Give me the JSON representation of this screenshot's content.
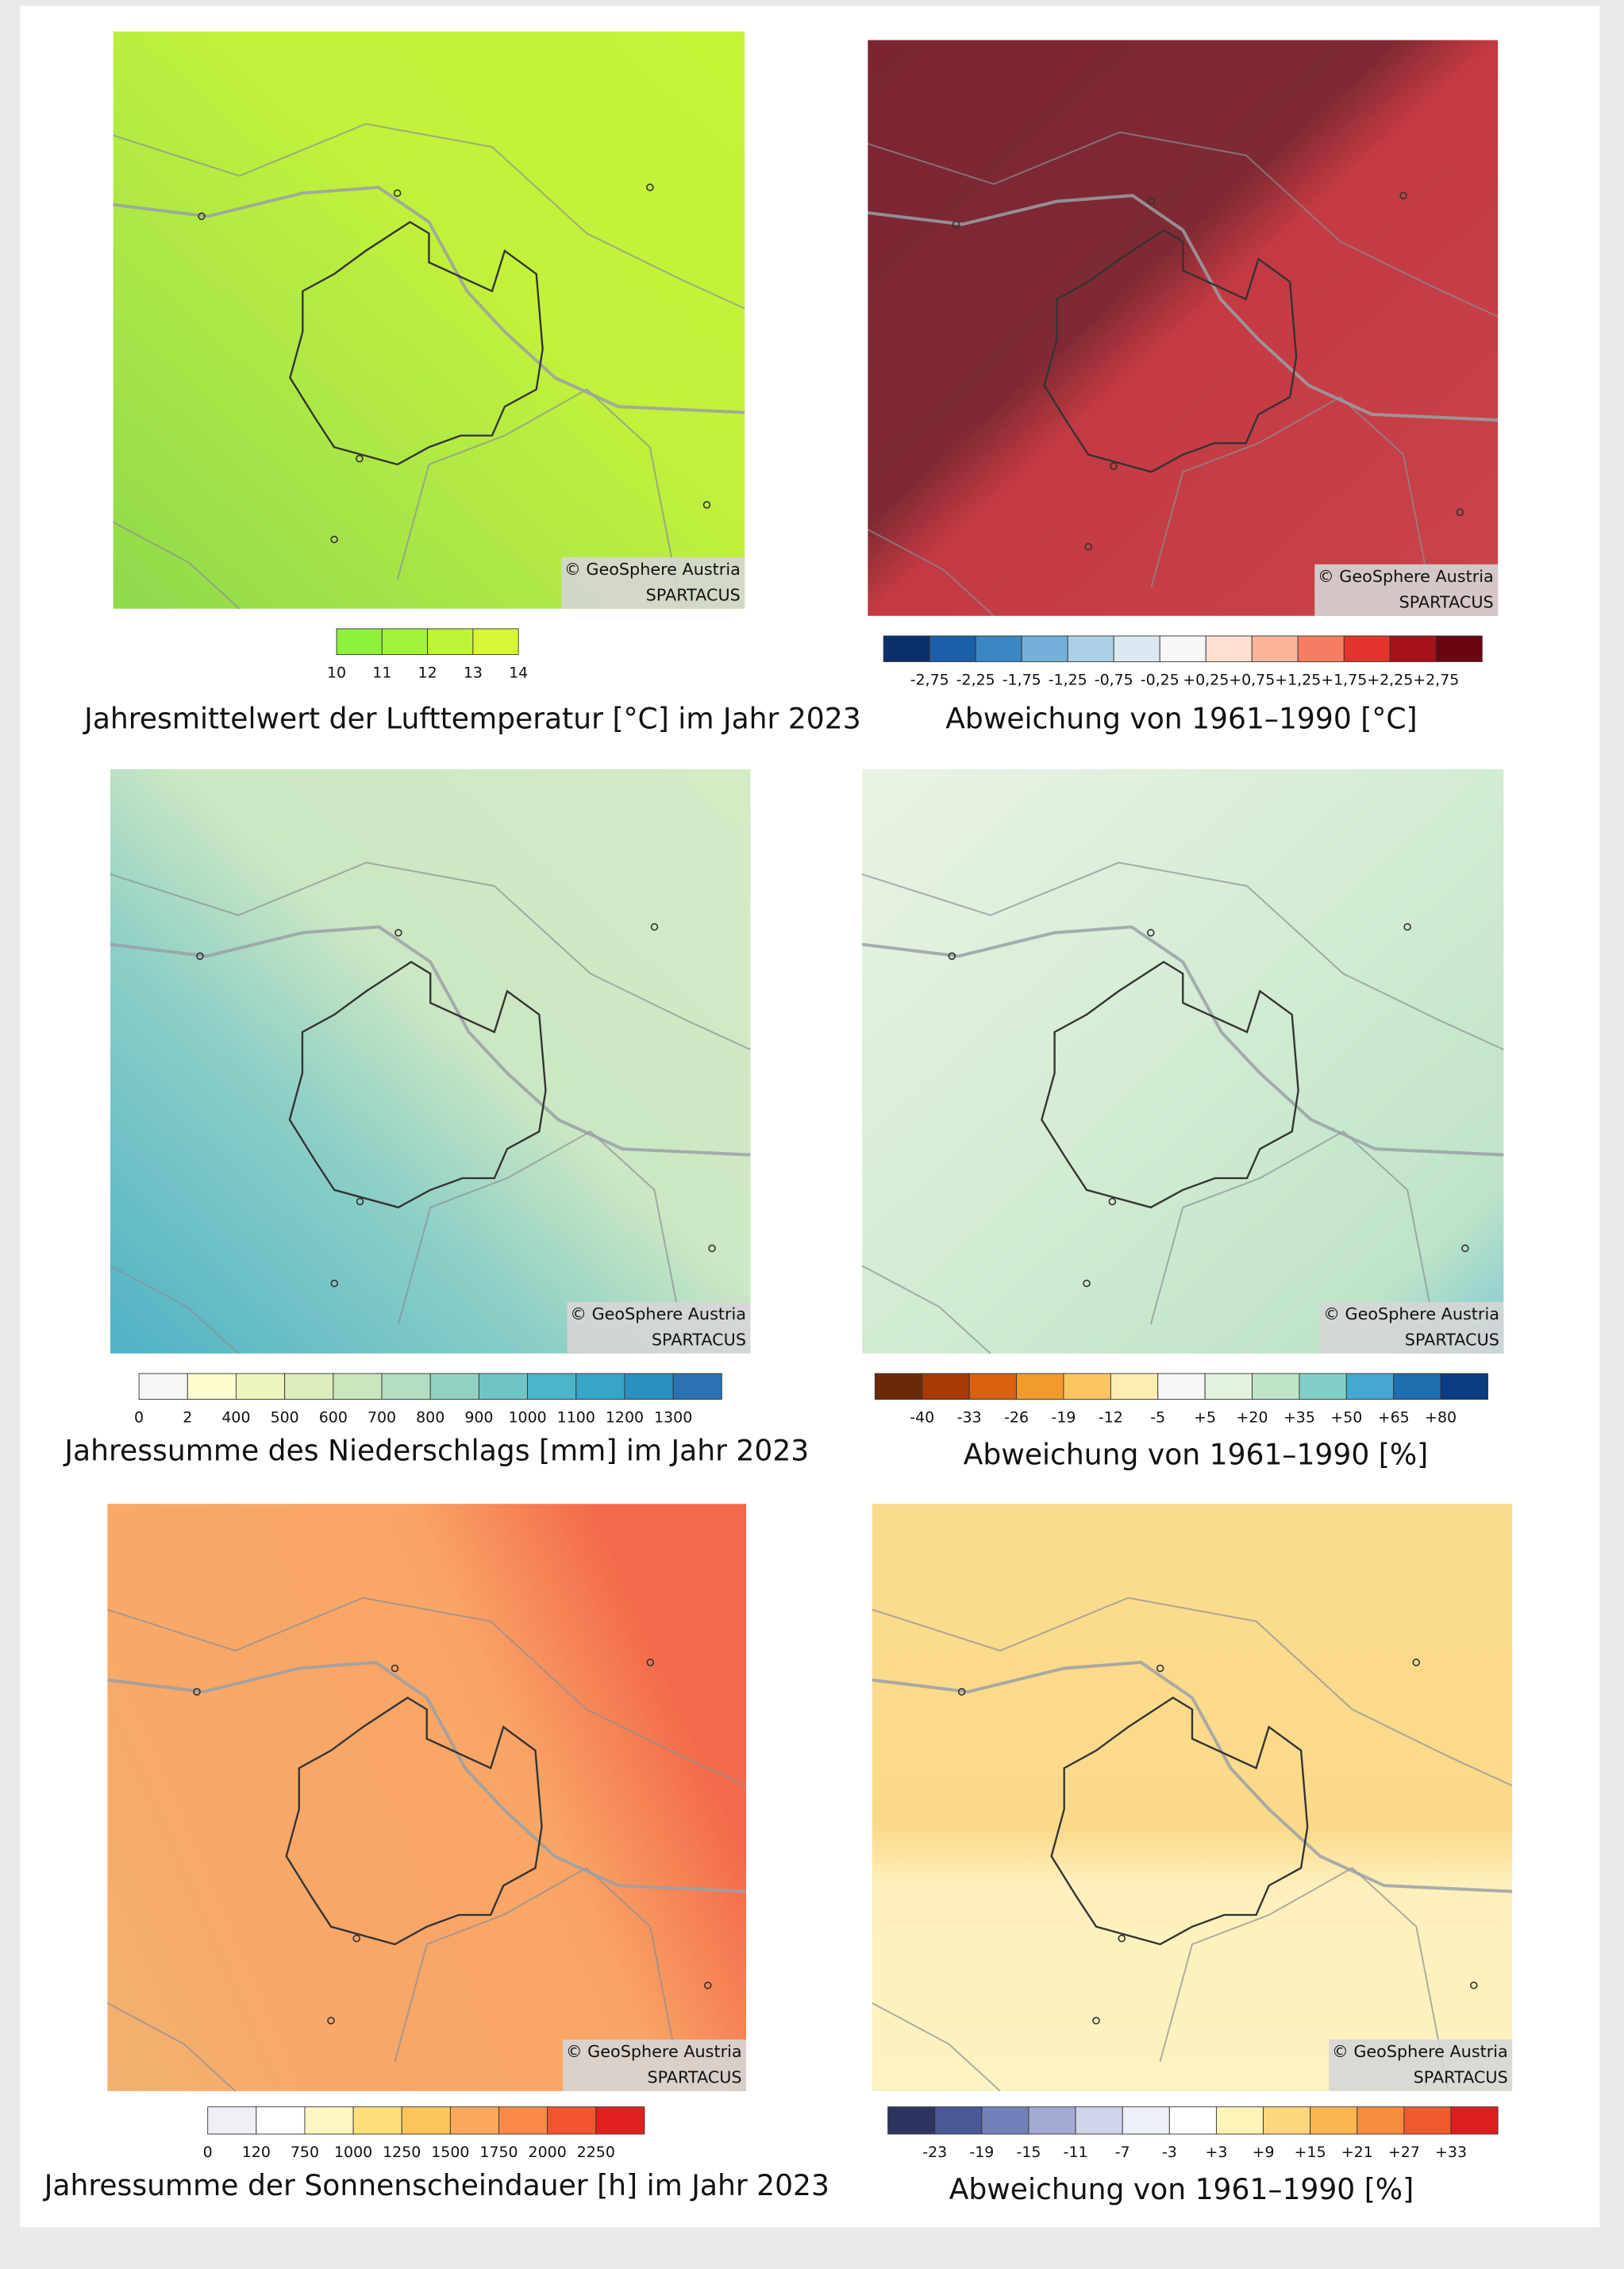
{
  "panels": [
    {
      "title": "Jahresmittelwert der Lufttemperatur [°C] im Jahr 2023",
      "credit": [
        "© GeoSphere Austria",
        "SPARTACUS"
      ],
      "legend": {
        "colors": [
          "#8cf03c",
          "#a3f23a",
          "#bcf438",
          "#d6f636"
        ],
        "labels": [
          "10",
          "11",
          "12",
          "13",
          "14"
        ]
      }
    },
    {
      "title": "Abweichung von 1961–1990 [°C]",
      "credit": [
        "© GeoSphere Austria",
        "SPARTACUS"
      ],
      "legend": {
        "colors": [
          "#0b2f6b",
          "#1a5fa8",
          "#3b87c4",
          "#73b0d8",
          "#acd0e6",
          "#dbe9f3",
          "#f7f7f7",
          "#fde0d0",
          "#fbb39a",
          "#f57e62",
          "#e2352d",
          "#a5121a",
          "#6a0612"
        ],
        "labels": [
          "-2,75",
          "-2,25",
          "-1,75",
          "-1,25",
          "-0,75",
          "-0,25",
          "+0,25",
          "+0,75",
          "+1,25",
          "+1,75",
          "+2,25",
          "+2,75"
        ]
      }
    },
    {
      "title": "Jahressumme des Niederschlags [mm] im Jahr 2023",
      "credit": [
        "© GeoSphere Austria",
        "SPARTACUS"
      ],
      "legend": {
        "colors": [
          "#f7f7f7",
          "#fdfdd0",
          "#eef4bd",
          "#dcedbb",
          "#c9e6bd",
          "#b3dec0",
          "#93d2c2",
          "#6fc4c6",
          "#4cb5c9",
          "#37a4c8",
          "#2b8fc0",
          "#2a72b2"
        ],
        "labels": [
          "0",
          "2",
          "400",
          "500",
          "600",
          "700",
          "800",
          "900",
          "1000",
          "1100",
          "1200",
          "1300"
        ]
      }
    },
    {
      "title": "Abweichung von 1961–1990 [%]",
      "credit": [
        "© GeoSphere Austria",
        "SPARTACUS"
      ],
      "legend": {
        "colors": [
          "#6b2a06",
          "#a83a08",
          "#d8620f",
          "#f39a2c",
          "#fbc661",
          "#fdeeb0",
          "#f7f7f7",
          "#e3f2df",
          "#bfe5c7",
          "#82cfc7",
          "#45a8d0",
          "#1e6fb0",
          "#0b3c82"
        ],
        "labels": [
          "-40",
          "-33",
          "-26",
          "-19",
          "-12",
          "-5",
          "+5",
          "+20",
          "+35",
          "+50",
          "+65",
          "+80"
        ]
      }
    },
    {
      "title": "Jahressumme der Sonnenscheindauer [h] im Jahr 2023",
      "credit": [
        "© GeoSphere Austria",
        "SPARTACUS"
      ],
      "legend": {
        "colors": [
          "#eef0f6",
          "#ffffff",
          "#fdf6c0",
          "#fde07c",
          "#fcc55c",
          "#fba85e",
          "#f98a4a",
          "#f45530",
          "#e0201e"
        ],
        "labels": [
          "0",
          "120",
          "750",
          "1000",
          "1250",
          "1500",
          "1750",
          "2000",
          "2250"
        ]
      }
    },
    {
      "title": "Abweichung von 1961–1990 [%]",
      "credit": [
        "© GeoSphere Austria",
        "SPARTACUS"
      ],
      "legend": {
        "colors": [
          "#2c3560",
          "#4a5897",
          "#7380b8",
          "#a3abd4",
          "#d0d5ea",
          "#eef0f7",
          "#ffffff",
          "#fdf5b8",
          "#fcd77e",
          "#fbb653",
          "#f58d3c",
          "#ef5a2e",
          "#dc1e1e"
        ],
        "labels": [
          "-23",
          "-19",
          "-15",
          "-11",
          "-7",
          "-3",
          "+3",
          "+9",
          "+15",
          "+21",
          "+27",
          "+33"
        ]
      }
    }
  ]
}
